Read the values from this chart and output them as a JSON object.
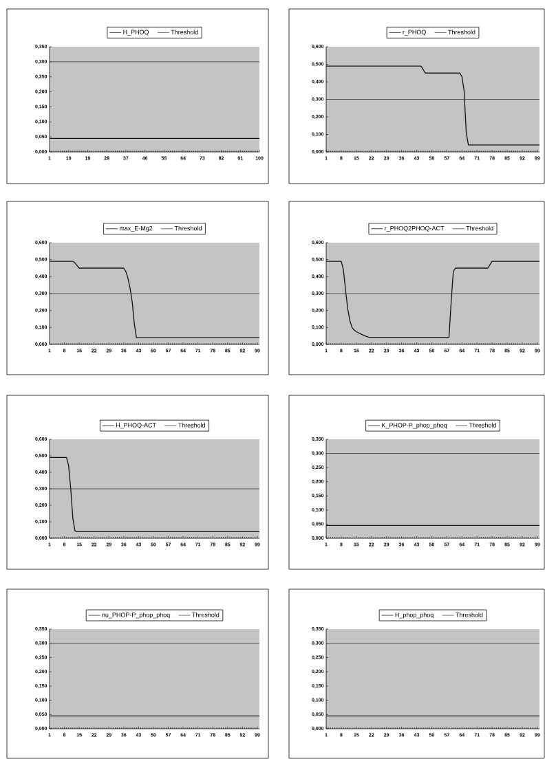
{
  "chart_data": [
    {
      "type": "line",
      "legend": "top",
      "xlim": [
        1,
        100
      ],
      "xticks": [
        1,
        10,
        19,
        28,
        37,
        46,
        55,
        64,
        73,
        82,
        91,
        100
      ],
      "ylim": [
        0,
        0.35
      ],
      "yticks": [
        {
          "value": 0,
          "label": "0,000"
        },
        {
          "value": 0.05,
          "label": "0,050"
        },
        {
          "value": 0.1,
          "label": "0,100"
        },
        {
          "value": 0.15,
          "label": "0,150"
        },
        {
          "value": 0.2,
          "label": "0,200"
        },
        {
          "value": 0.25,
          "label": "0,250"
        },
        {
          "value": 0.3,
          "label": "0,300"
        },
        {
          "value": 0.35,
          "label": "0,350"
        }
      ],
      "series": [
        {
          "name": "H_PHOQ",
          "color": "#111111",
          "x": [
            1,
            100
          ],
          "values": [
            0.045,
            0.045
          ]
        },
        {
          "name": "Threshold",
          "color": "#444444",
          "x": [
            1,
            100
          ],
          "values": [
            0.3,
            0.3
          ]
        }
      ]
    },
    {
      "type": "line",
      "legend": "top",
      "xlim": [
        1,
        100
      ],
      "xticks": [
        1,
        8,
        15,
        22,
        29,
        36,
        43,
        50,
        57,
        64,
        71,
        78,
        85,
        92,
        99
      ],
      "ylim": [
        0,
        0.6
      ],
      "yticks": [
        {
          "value": 0,
          "label": "0,000"
        },
        {
          "value": 0.1,
          "label": "0,100"
        },
        {
          "value": 0.2,
          "label": "0,200"
        },
        {
          "value": 0.3,
          "label": "0,300"
        },
        {
          "value": 0.4,
          "label": "0,400"
        },
        {
          "value": 0.5,
          "label": "0,500"
        },
        {
          "value": 0.6,
          "label": "0,600"
        }
      ],
      "series": [
        {
          "name": "r_PHOQ",
          "color": "#111111",
          "x": [
            1,
            45,
            46,
            47,
            63,
            64,
            65,
            66,
            67,
            100
          ],
          "values": [
            0.49,
            0.49,
            0.47,
            0.45,
            0.45,
            0.43,
            0.35,
            0.11,
            0.04,
            0.04
          ]
        },
        {
          "name": "Threshold",
          "color": "#444444",
          "x": [
            1,
            100
          ],
          "values": [
            0.3,
            0.3
          ]
        }
      ]
    },
    {
      "type": "line",
      "legend": "top",
      "xlim": [
        1,
        100
      ],
      "xticks": [
        1,
        8,
        15,
        22,
        29,
        36,
        43,
        50,
        57,
        64,
        71,
        78,
        85,
        92,
        99
      ],
      "ylim": [
        0,
        0.6
      ],
      "yticks": [
        {
          "value": 0,
          "label": "0,000"
        },
        {
          "value": 0.1,
          "label": "0,100"
        },
        {
          "value": 0.2,
          "label": "0,200"
        },
        {
          "value": 0.3,
          "label": "0,300"
        },
        {
          "value": 0.4,
          "label": "0,400"
        },
        {
          "value": 0.5,
          "label": "0,500"
        },
        {
          "value": 0.6,
          "label": "0,600"
        }
      ],
      "series": [
        {
          "name": "max_E-Mg2",
          "color": "#111111",
          "x": [
            1,
            12,
            13,
            15,
            36,
            37,
            38,
            39,
            40,
            41,
            42,
            100
          ],
          "values": [
            0.49,
            0.49,
            0.48,
            0.45,
            0.45,
            0.43,
            0.39,
            0.33,
            0.25,
            0.12,
            0.04,
            0.04
          ]
        },
        {
          "name": "Threshold",
          "color": "#444444",
          "x": [
            1,
            100
          ],
          "values": [
            0.3,
            0.3
          ]
        }
      ]
    },
    {
      "type": "line",
      "legend": "top",
      "xlim": [
        1,
        100
      ],
      "xticks": [
        1,
        8,
        15,
        22,
        29,
        36,
        43,
        50,
        57,
        64,
        71,
        78,
        85,
        92,
        99
      ],
      "ylim": [
        0,
        0.6
      ],
      "yticks": [
        {
          "value": 0,
          "label": "0,000"
        },
        {
          "value": 0.1,
          "label": "0,100"
        },
        {
          "value": 0.2,
          "label": "0,200"
        },
        {
          "value": 0.3,
          "label": "0,300"
        },
        {
          "value": 0.4,
          "label": "0,400"
        },
        {
          "value": 0.5,
          "label": "0,500"
        },
        {
          "value": 0.6,
          "label": "0,600"
        }
      ],
      "series": [
        {
          "name": "r_PHOQ2PHOQ-ACT",
          "color": "#111111",
          "x": [
            1,
            8,
            9,
            10,
            11,
            12,
            13,
            14,
            15,
            17,
            19,
            21,
            58,
            59,
            60,
            61,
            76,
            77,
            78,
            100
          ],
          "values": [
            0.49,
            0.49,
            0.44,
            0.32,
            0.21,
            0.14,
            0.1,
            0.085,
            0.075,
            0.062,
            0.05,
            0.042,
            0.042,
            0.25,
            0.43,
            0.45,
            0.45,
            0.47,
            0.49,
            0.49
          ]
        },
        {
          "name": "Threshold",
          "color": "#444444",
          "x": [
            1,
            100
          ],
          "values": [
            0.3,
            0.3
          ]
        }
      ]
    },
    {
      "type": "line",
      "legend": "top",
      "xlim": [
        1,
        100
      ],
      "xticks": [
        1,
        8,
        15,
        22,
        29,
        36,
        43,
        50,
        57,
        64,
        71,
        78,
        85,
        92,
        99
      ],
      "ylim": [
        0,
        0.6
      ],
      "yticks": [
        {
          "value": 0,
          "label": "0,000"
        },
        {
          "value": 0.1,
          "label": "0,100"
        },
        {
          "value": 0.2,
          "label": "0,200"
        },
        {
          "value": 0.3,
          "label": "0,300"
        },
        {
          "value": 0.4,
          "label": "0,400"
        },
        {
          "value": 0.5,
          "label": "0,500"
        },
        {
          "value": 0.6,
          "label": "0,600"
        }
      ],
      "series": [
        {
          "name": "H_PHOQ-ACT",
          "color": "#111111",
          "x": [
            1,
            9,
            10,
            11,
            12,
            13,
            14,
            100
          ],
          "values": [
            0.49,
            0.49,
            0.44,
            0.3,
            0.12,
            0.045,
            0.04,
            0.04
          ]
        },
        {
          "name": "Threshold",
          "color": "#444444",
          "x": [
            1,
            100
          ],
          "values": [
            0.3,
            0.3
          ]
        }
      ]
    },
    {
      "type": "line",
      "legend": "top",
      "xlim": [
        1,
        100
      ],
      "xticks": [
        1,
        8,
        15,
        22,
        29,
        36,
        43,
        50,
        57,
        64,
        71,
        78,
        85,
        92,
        99
      ],
      "ylim": [
        0,
        0.35
      ],
      "yticks": [
        {
          "value": 0,
          "label": "0,000"
        },
        {
          "value": 0.05,
          "label": "0,050"
        },
        {
          "value": 0.1,
          "label": "0,100"
        },
        {
          "value": 0.15,
          "label": "0,150"
        },
        {
          "value": 0.2,
          "label": "0,200"
        },
        {
          "value": 0.25,
          "label": "0,250"
        },
        {
          "value": 0.3,
          "label": "0,300"
        },
        {
          "value": 0.35,
          "label": "0,350"
        }
      ],
      "series": [
        {
          "name": "K_PHOP-P_phop_phoq",
          "color": "#111111",
          "x": [
            1,
            100
          ],
          "values": [
            0.045,
            0.045
          ]
        },
        {
          "name": "Threshold",
          "color": "#444444",
          "x": [
            1,
            100
          ],
          "values": [
            0.3,
            0.3
          ]
        }
      ]
    },
    {
      "type": "line",
      "legend": "top",
      "xlim": [
        1,
        100
      ],
      "xticks": [
        1,
        8,
        15,
        22,
        29,
        36,
        43,
        50,
        57,
        64,
        71,
        78,
        85,
        92,
        99
      ],
      "ylim": [
        0,
        0.35
      ],
      "yticks": [
        {
          "value": 0,
          "label": "0,000"
        },
        {
          "value": 0.05,
          "label": "0,050"
        },
        {
          "value": 0.1,
          "label": "0,100"
        },
        {
          "value": 0.15,
          "label": "0,150"
        },
        {
          "value": 0.2,
          "label": "0,200"
        },
        {
          "value": 0.25,
          "label": "0,250"
        },
        {
          "value": 0.3,
          "label": "0,300"
        },
        {
          "value": 0.35,
          "label": "0,350"
        }
      ],
      "series": [
        {
          "name": "nu_PHOP-P_phop_phoq",
          "color": "#111111",
          "x": [
            1,
            100
          ],
          "values": [
            0.045,
            0.045
          ]
        },
        {
          "name": "Threshold",
          "color": "#444444",
          "x": [
            1,
            100
          ],
          "values": [
            0.3,
            0.3
          ]
        }
      ]
    },
    {
      "type": "line",
      "legend": "top",
      "xlim": [
        1,
        100
      ],
      "xticks": [
        1,
        8,
        15,
        22,
        29,
        36,
        43,
        50,
        57,
        64,
        71,
        78,
        85,
        92,
        99
      ],
      "ylim": [
        0,
        0.35
      ],
      "yticks": [
        {
          "value": 0,
          "label": "0,000"
        },
        {
          "value": 0.05,
          "label": "0,050"
        },
        {
          "value": 0.1,
          "label": "0,100"
        },
        {
          "value": 0.15,
          "label": "0,150"
        },
        {
          "value": 0.2,
          "label": "0,200"
        },
        {
          "value": 0.25,
          "label": "0,250"
        },
        {
          "value": 0.3,
          "label": "0,300"
        },
        {
          "value": 0.35,
          "label": "0,350"
        }
      ],
      "series": [
        {
          "name": "H_phop_phoq",
          "color": "#111111",
          "x": [
            1,
            100
          ],
          "values": [
            0.045,
            0.045
          ]
        },
        {
          "name": "Threshold",
          "color": "#444444",
          "x": [
            1,
            100
          ],
          "values": [
            0.3,
            0.3
          ]
        }
      ]
    }
  ]
}
